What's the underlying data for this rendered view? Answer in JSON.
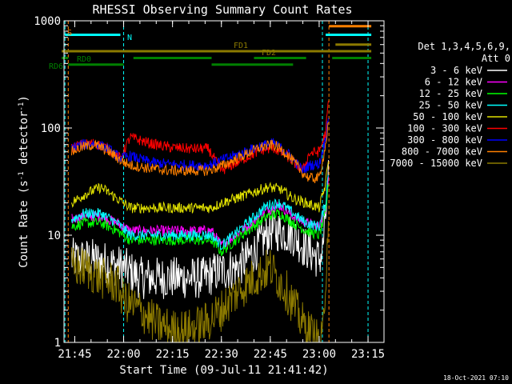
{
  "chart_data": {
    "type": "line",
    "title": "RHESSI Observing Summary Count Rates",
    "xlabel": "Start Time (09-Jul-11 21:41:42)",
    "ylabel_prefix": "Count Rate (s",
    "ylabel_sup1": "-1",
    "ylabel_mid": " detector",
    "ylabel_sup2": "-1",
    "ylabel_suffix": ")",
    "y_scale": "log",
    "ylim": [
      1,
      1000
    ],
    "xlim": [
      "21:41:42",
      "23:19:54"
    ],
    "x_ticks": [
      "21:45",
      "22:00",
      "22:15",
      "22:30",
      "22:45",
      "23:00",
      "23:15"
    ],
    "y_ticks": [
      "1",
      "10",
      "100",
      "1000"
    ],
    "footer_date": "18-Oct-2021 07:10",
    "legend": {
      "header1": "Det 1,3,4,5,6,9,",
      "header2": "Att 0",
      "entries": [
        {
          "label": "3 - 6 keV",
          "color": "#ffffff"
        },
        {
          "label": "6 - 12 keV",
          "color": "#ff00ff"
        },
        {
          "label": "12 - 25 keV",
          "color": "#00ff00"
        },
        {
          "label": "25 - 50 keV",
          "color": "#00ffff"
        },
        {
          "label": "50 - 100 keV",
          "color": "#e0e000"
        },
        {
          "label": "100 - 300 keV",
          "color": "#ff0000"
        },
        {
          "label": "300 - 800 keV",
          "color": "#0000ff"
        },
        {
          "label": "800 - 7000 keV",
          "color": "#ff8000"
        },
        {
          "label": "7000 - 15000 keV",
          "color": "#8c7a00"
        }
      ]
    },
    "flag_bars": [
      {
        "label": "S",
        "color": "#ff8000",
        "y_level": 890,
        "segments": [
          [
            "23:03",
            "23:16"
          ]
        ]
      },
      {
        "label": "N",
        "color": "#00ffff",
        "y_level": 740,
        "segments": [
          [
            "21:42",
            "21:59"
          ],
          [
            "23:02",
            "23:16"
          ]
        ]
      },
      {
        "label": "FD1",
        "color": "#8c7a00",
        "y_level": 600,
        "segments": [
          [
            "23:05",
            "23:16"
          ]
        ]
      },
      {
        "label": "FD2",
        "color": "#8c7a00",
        "y_level": 520,
        "segments": [
          [
            "21:41",
            "23:16"
          ]
        ]
      },
      {
        "label": "RD0",
        "color": "#008000",
        "y_level": 450,
        "segments": [
          [
            "21:41",
            "21:43"
          ],
          [
            "22:03",
            "22:27"
          ],
          [
            "22:40",
            "22:56"
          ],
          [
            "23:04",
            "23:16"
          ]
        ]
      },
      {
        "label": "RD6",
        "color": "#008000",
        "y_level": 390,
        "segments": [
          [
            "21:43",
            "22:00"
          ],
          [
            "22:27",
            "22:52"
          ]
        ]
      }
    ],
    "vertical_lines": [
      {
        "time": "21:42",
        "color": "#00ffff"
      },
      {
        "time": "22:00",
        "color": "#00ffff"
      },
      {
        "time": "23:01",
        "color": "#00ffff"
      },
      {
        "time": "23:15",
        "color": "#00ffff"
      },
      {
        "time": "21:43",
        "color": "#ff8000"
      },
      {
        "time": "23:03",
        "color": "#ff8000"
      }
    ],
    "series": [
      {
        "name": "3 - 6 keV",
        "color": "#ffffff",
        "x": [
          "21:44",
          "21:50",
          "21:55",
          "22:00",
          "22:05",
          "22:15",
          "22:25",
          "22:28",
          "22:35",
          "22:40",
          "22:45",
          "22:48",
          "22:52",
          "22:55",
          "23:00",
          "23:01",
          "23:02",
          "23:03"
        ],
        "values": [
          6,
          6,
          5.5,
          5,
          4,
          4,
          4,
          4.5,
          5,
          7,
          11,
          11,
          10,
          8,
          6,
          7,
          15,
          40
        ]
      },
      {
        "name": "6 - 12 keV",
        "color": "#ff00ff",
        "x": [
          "21:44",
          "21:48",
          "21:53",
          "21:58",
          "22:02",
          "22:10",
          "22:20",
          "22:27",
          "22:30",
          "22:38",
          "22:44",
          "22:48",
          "22:52",
          "22:56",
          "23:00",
          "23:02",
          "23:03"
        ],
        "values": [
          14,
          15,
          15,
          13,
          11,
          11,
          11,
          11,
          8,
          12,
          17,
          19,
          15,
          13,
          12,
          18,
          40
        ]
      },
      {
        "name": "12 - 25 keV",
        "color": "#00ff00",
        "x": [
          "21:44",
          "21:48",
          "21:53",
          "21:58",
          "22:02",
          "22:10",
          "22:20",
          "22:27",
          "22:30",
          "22:38",
          "22:44",
          "22:48",
          "22:52",
          "22:56",
          "23:00",
          "23:02",
          "23:03"
        ],
        "values": [
          12,
          13,
          13,
          11,
          9,
          9,
          9,
          9,
          7,
          11,
          15,
          16,
          13,
          11,
          10,
          16,
          35
        ]
      },
      {
        "name": "25 - 50 keV",
        "color": "#00ffff",
        "x": [
          "21:44",
          "21:48",
          "21:53",
          "21:58",
          "22:02",
          "22:10",
          "22:20",
          "22:27",
          "22:30",
          "22:38",
          "22:44",
          "22:48",
          "22:52",
          "22:56",
          "23:00",
          "23:02",
          "23:03"
        ],
        "values": [
          14,
          16,
          16,
          13,
          10,
          10,
          10,
          10,
          8,
          13,
          19,
          20,
          16,
          13,
          12,
          20,
          45
        ]
      },
      {
        "name": "50 - 100 keV",
        "color": "#e0e000",
        "x": [
          "21:44",
          "21:48",
          "21:53",
          "21:58",
          "22:02",
          "22:10",
          "22:20",
          "22:27",
          "22:30",
          "22:38",
          "22:44",
          "22:48",
          "22:52",
          "22:56",
          "23:00",
          "23:02",
          "23:03"
        ],
        "values": [
          20,
          24,
          28,
          22,
          18,
          18,
          18,
          18,
          20,
          24,
          28,
          27,
          22,
          20,
          18,
          30,
          60
        ]
      },
      {
        "name": "100 - 300 keV",
        "color": "#ff0000",
        "x": [
          "21:44",
          "21:47",
          "21:51",
          "21:55",
          "21:59",
          "22:02",
          "22:08",
          "22:14",
          "22:20",
          "22:26",
          "22:30",
          "22:36",
          "22:42",
          "22:46",
          "22:50",
          "22:55",
          "22:57",
          "23:00",
          "23:02",
          "23:03"
        ],
        "values": [
          65,
          70,
          72,
          65,
          52,
          82,
          72,
          66,
          64,
          64,
          40,
          50,
          62,
          65,
          55,
          40,
          58,
          60,
          90,
          200
        ]
      },
      {
        "name": "300 - 800 keV",
        "color": "#0000ff",
        "x": [
          "21:44",
          "21:47",
          "21:51",
          "21:55",
          "21:59",
          "22:02",
          "22:08",
          "22:14",
          "22:20",
          "22:26",
          "22:30",
          "22:36",
          "22:42",
          "22:46",
          "22:50",
          "22:55",
          "22:57",
          "23:00",
          "23:02",
          "23:03"
        ],
        "values": [
          65,
          70,
          72,
          65,
          52,
          55,
          48,
          46,
          45,
          45,
          50,
          58,
          68,
          72,
          60,
          40,
          45,
          46,
          80,
          150
        ]
      },
      {
        "name": "800 - 7000 keV",
        "color": "#ff8000",
        "x": [
          "21:44",
          "21:47",
          "21:51",
          "21:55",
          "21:59",
          "22:02",
          "22:08",
          "22:14",
          "22:20",
          "22:26",
          "22:30",
          "22:36",
          "22:42",
          "22:46",
          "22:50",
          "22:55",
          "22:57",
          "23:00",
          "23:02",
          "23:03"
        ],
        "values": [
          60,
          66,
          70,
          62,
          50,
          45,
          42,
          40,
          40,
          40,
          44,
          54,
          66,
          70,
          58,
          38,
          34,
          34,
          70,
          120
        ]
      },
      {
        "name": "7000 - 15000 keV",
        "color": "#8c7a00",
        "x": [
          "21:44",
          "21:48",
          "21:53",
          "21:58",
          "22:00",
          "22:05",
          "22:10",
          "22:15",
          "22:20",
          "22:25",
          "22:30",
          "22:35",
          "22:40",
          "22:45",
          "22:50",
          "22:55",
          "23:00",
          "23:01",
          "23:02",
          "23:03"
        ],
        "values": [
          5,
          5,
          4,
          3.5,
          2.5,
          2,
          1.5,
          1.3,
          1.3,
          1.5,
          2,
          3,
          4,
          5,
          3,
          1.5,
          1,
          1,
          4,
          20
        ]
      }
    ]
  }
}
